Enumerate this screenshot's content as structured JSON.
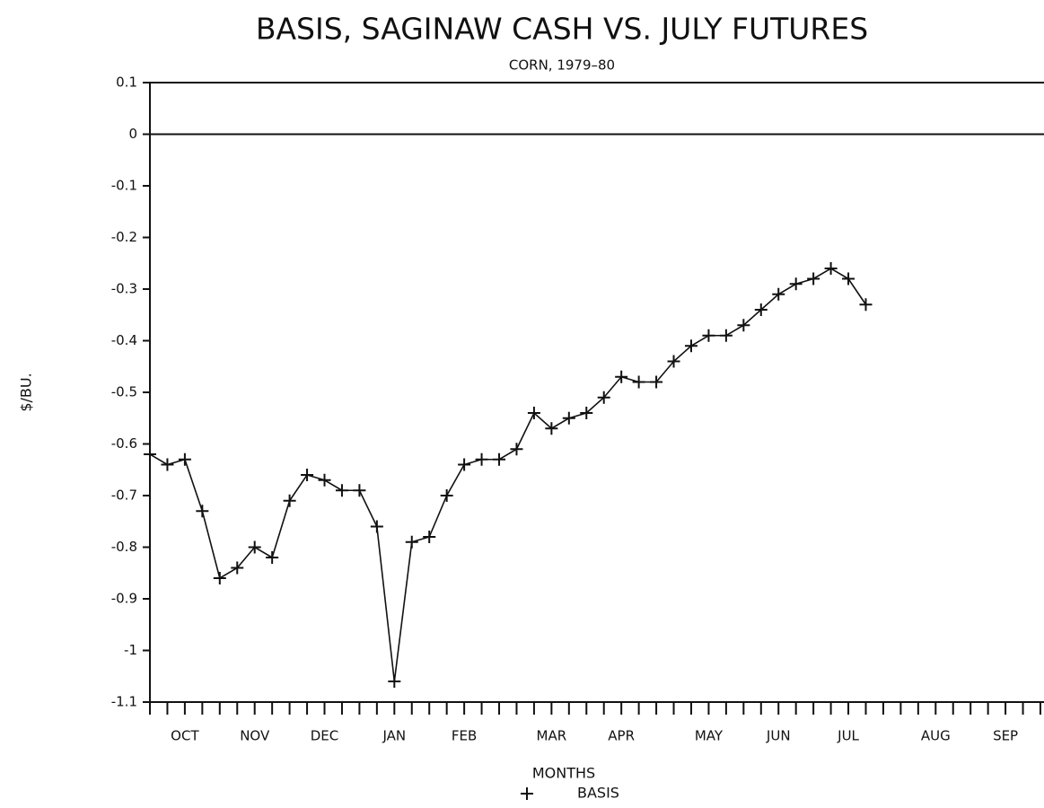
{
  "chart_data": {
    "type": "line",
    "title": "BASIS, SAGINAW CASH VS. JULY FUTURES",
    "subtitle": "CORN, 1979–80",
    "x_label": "MONTHS",
    "y_label": "$/BU.",
    "x": [
      0,
      1,
      2,
      3,
      4,
      5,
      6,
      7,
      8,
      9,
      10,
      11,
      12,
      13,
      14,
      15,
      16,
      17,
      18,
      19,
      20,
      21,
      22,
      23,
      24,
      25,
      26,
      27,
      28,
      29,
      30,
      31,
      32,
      33,
      34,
      35,
      36,
      37,
      38,
      39,
      40,
      41
    ],
    "series": [
      {
        "name": "BASIS",
        "color": "#111111",
        "marker": "+",
        "values": [
          -0.62,
          -0.64,
          -0.63,
          -0.73,
          -0.86,
          -0.84,
          -0.8,
          -0.82,
          -0.71,
          -0.66,
          -0.67,
          -0.69,
          -0.69,
          -0.76,
          -1.06,
          -0.79,
          -0.78,
          -0.7,
          -0.64,
          -0.63,
          -0.63,
          -0.61,
          -0.54,
          -0.57,
          -0.55,
          -0.54,
          -0.51,
          -0.47,
          -0.48,
          -0.48,
          -0.44,
          -0.41,
          -0.39,
          -0.39,
          -0.37,
          -0.34,
          -0.31,
          -0.29,
          -0.28,
          -0.26,
          -0.28,
          -0.33
        ]
      }
    ],
    "xlim": [
      0,
      51
    ],
    "xticks": [
      {
        "value": 2,
        "label": "OCT"
      },
      {
        "value": 6,
        "label": "NOV"
      },
      {
        "value": 10,
        "label": "DEC"
      },
      {
        "value": 14,
        "label": "JAN"
      },
      {
        "value": 18,
        "label": "FEB"
      },
      {
        "value": 23,
        "label": "MAR"
      },
      {
        "value": 27,
        "label": "APR"
      },
      {
        "value": 32,
        "label": "MAY"
      },
      {
        "value": 36,
        "label": "JUN"
      },
      {
        "value": 40,
        "label": "JUL"
      },
      {
        "value": 45,
        "label": "AUG"
      },
      {
        "value": 49,
        "label": "SEP"
      }
    ],
    "xminorticks": [
      0,
      1,
      2,
      3,
      4,
      5,
      6,
      7,
      8,
      9,
      10,
      11,
      12,
      13,
      14,
      15,
      16,
      17,
      18,
      19,
      20,
      21,
      22,
      23,
      24,
      25,
      26,
      27,
      28,
      29,
      30,
      31,
      32,
      33,
      34,
      35,
      36,
      37,
      38,
      39,
      40,
      41,
      42,
      43,
      44,
      45,
      46,
      47,
      48,
      49,
      50,
      51
    ],
    "ylim": [
      -1.1,
      0.1
    ],
    "yticks": [
      0.1,
      0,
      -0.1,
      -0.2,
      -0.3,
      -0.4,
      -0.5,
      -0.6,
      -0.7,
      -0.8,
      -0.9,
      -1,
      -1.1
    ],
    "zero_line": true
  }
}
